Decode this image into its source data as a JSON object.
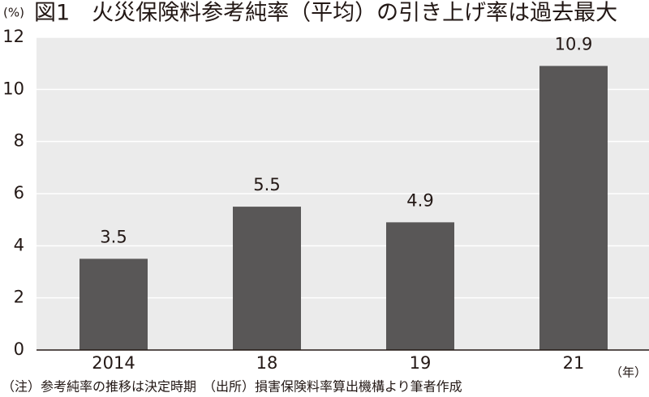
{
  "chart_data": {
    "type": "bar",
    "title": "図1　火災保険料参考純率（平均）の引き上げ率は過去最大",
    "y_label": "(%)",
    "x_label": "（年）",
    "note": "（注）参考純率の推移は決定時期　（出所）損害保険料率算出機構より筆者作成",
    "categories": [
      "2014",
      "18",
      "19",
      "21"
    ],
    "values": [
      3.5,
      5.5,
      4.9,
      10.9
    ],
    "color": "#595757",
    "ylim": [
      0,
      12
    ],
    "yticks": [
      0,
      2,
      4,
      6,
      8,
      10,
      12
    ],
    "grid": true
  }
}
